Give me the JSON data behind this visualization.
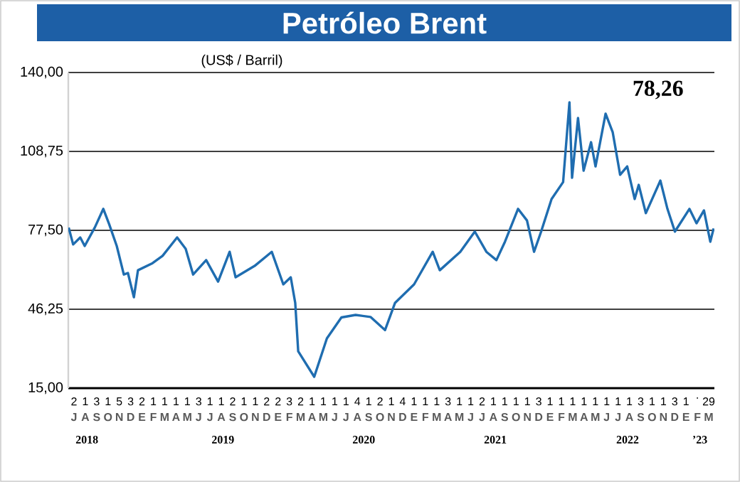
{
  "chart_data": {
    "type": "line",
    "title": "Petróleo Brent",
    "subtitle": "(US$ / Barril)",
    "annotations": [
      "78,26",
      "2",
      "1",
      "3",
      "1",
      "5",
      "3",
      "2",
      "1",
      "1",
      "1",
      "1",
      "3",
      "1",
      "1",
      "2",
      "1",
      "1",
      "2",
      "2",
      "3",
      "2",
      "1",
      "1",
      "1",
      "1",
      "4",
      "1",
      "2",
      "1",
      "4",
      "1",
      "1",
      "1",
      "3",
      "1",
      "1",
      "2",
      "1",
      "1",
      "1",
      "1",
      "3",
      "1",
      "1",
      "1",
      "1",
      "1",
      "1",
      "1",
      "1",
      "3",
      "1",
      "1",
      "3",
      "1",
      ".",
      "29",
      "J",
      "A",
      "S",
      "O",
      "N",
      "D",
      "E",
      "F",
      "M",
      "A",
      "M",
      "J",
      "J",
      "A",
      "S",
      "O",
      "N",
      "D",
      "E",
      "F",
      "M",
      "A",
      "M",
      "J",
      "J",
      "A",
      "S",
      "O",
      "N",
      "D",
      "E",
      "F",
      "M",
      "A",
      "M",
      "J",
      "J",
      "A",
      "S",
      "O",
      "N",
      "D",
      "E",
      "F",
      "M",
      "A",
      "M",
      "J",
      "J",
      "A",
      "S",
      "O",
      "N",
      "D",
      "E",
      "F",
      "M"
    ],
    "x": [
      "2018-07-02",
      "2018-07-14",
      "2018-08-02",
      "2018-08-14",
      "2018-09-10",
      "2018-10-03",
      "2018-10-19",
      "2018-11-08",
      "2018-11-27",
      "2018-12-08",
      "2018-12-24",
      "2019-01-04",
      "2019-02-12",
      "2019-03-11",
      "2019-04-19",
      "2019-05-12",
      "2019-06-01",
      "2019-07-06",
      "2019-08-07",
      "2019-09-07",
      "2019-09-23",
      "2019-11-13",
      "2019-12-29",
      "2020-01-29",
      "2020-02-18",
      "2020-03-01",
      "2020-03-09",
      "2020-04-21",
      "2020-05-25",
      "2020-07-03",
      "2020-08-10",
      "2020-09-19",
      "2020-10-28",
      "2020-11-24",
      "2021-01-14",
      "2021-03-05",
      "2021-03-24",
      "2021-05-18",
      "2021-06-26",
      "2021-07-27",
      "2021-08-23",
      "2021-09-15",
      "2021-10-20",
      "2021-11-13",
      "2021-12-02",
      "2021-12-21",
      "2022-01-18",
      "2022-02-18",
      "2022-03-07",
      "2022-03-14",
      "2022-03-30",
      "2022-04-14",
      "2022-05-04",
      "2022-05-16",
      "2022-06-12",
      "2022-07-01",
      "2022-07-21",
      "2022-08-09",
      "2022-08-29",
      "2022-09-09",
      "2022-09-28",
      "2022-11-06",
      "2022-11-25",
      "2022-12-15",
      "2023-01-23",
      "2023-02-11",
      "2023-03-03",
      "2023-03-20",
      "2023-03-29"
    ],
    "series": [
      {
        "color": "#1f6db0",
        "values": [
          78.6,
          71.9,
          74.7,
          71.3,
          78.6,
          86,
          79.8,
          71.3,
          60,
          60.6,
          51,
          61.7,
          64.5,
          67.4,
          74.7,
          70.2,
          60,
          65.7,
          57.2,
          69,
          58.9,
          63.4,
          69,
          56.1,
          58.9,
          48.8,
          29.6,
          19.5,
          34.7,
          43,
          44,
          43.2,
          38,
          48.8,
          56.1,
          69,
          61.7,
          69,
          77,
          69,
          65.7,
          73,
          86,
          81.4,
          69,
          77,
          89.9,
          96.6,
          128.2,
          98.3,
          122,
          101.1,
          112.4,
          102.8,
          123.7,
          116.4,
          99.5,
          102.8,
          89.9,
          95.5,
          84.3,
          97.2,
          86,
          77,
          86,
          80.3,
          85.4,
          73,
          78.26
        ]
      }
    ],
    "xlim": [
      "2018-07-01",
      "2023-03-31"
    ],
    "xticks": [
      {
        "value": "2018-08-20",
        "label": "2018"
      },
      {
        "value": "2019-08-20",
        "label": "2019"
      },
      {
        "value": "2020-09-01",
        "label": "2020"
      },
      {
        "value": "2021-08-20",
        "label": "2021"
      },
      {
        "value": "2022-08-10",
        "label": "2022"
      },
      {
        "value": "2023-02-20",
        "label": "’23"
      }
    ],
    "ylim": [
      15,
      140
    ],
    "yticks": [
      {
        "value": 15,
        "label": "15,00"
      },
      {
        "value": 46.25,
        "label": "46,25"
      },
      {
        "value": 77.5,
        "label": "77,50"
      },
      {
        "value": 108.75,
        "label": "108,75"
      },
      {
        "value": 140,
        "label": "140,00"
      }
    ],
    "grid": "y",
    "line_style": "solid"
  }
}
